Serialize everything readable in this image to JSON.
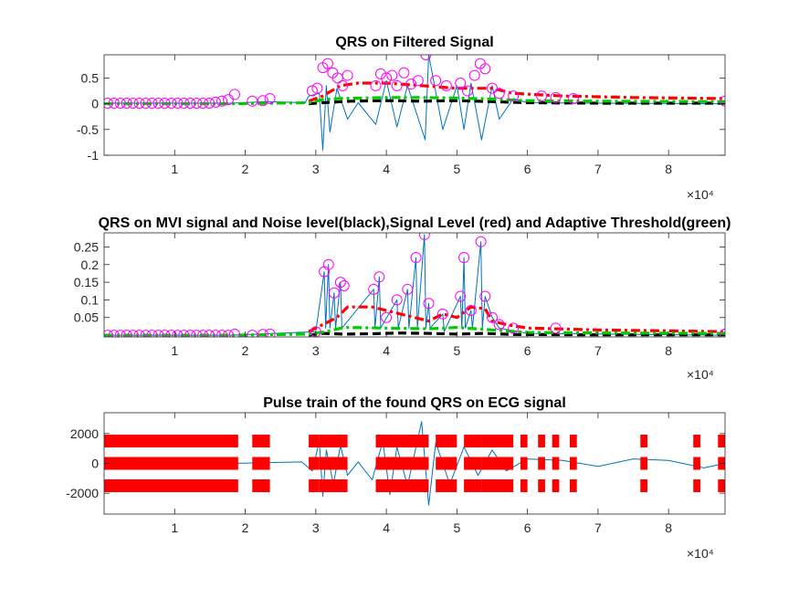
{
  "chart_data": [
    {
      "type": "line",
      "title": "QRS on Filtered Signal",
      "xlabel": "",
      "ylabel": "",
      "xlim": [
        0,
        88000
      ],
      "ylim": [
        -1,
        0.95
      ],
      "x_ticks": [
        10000,
        20000,
        30000,
        40000,
        50000,
        60000,
        70000,
        80000
      ],
      "x_tick_labels": [
        "1",
        "2",
        "3",
        "4",
        "5",
        "6",
        "7",
        "8"
      ],
      "x_exponent_label": "×10⁴",
      "y_ticks": [
        -1,
        -0.5,
        0,
        0.5
      ],
      "y_tick_labels": [
        "-1",
        "-0.5",
        "0",
        "0.5"
      ],
      "grid": false,
      "series": [
        {
          "role": "signal",
          "color": "#0072BD",
          "style": "solid",
          "x": [
            0,
            18000,
            23000,
            28500,
            29000,
            30500,
            31000,
            31500,
            32000,
            33000,
            34500,
            36000,
            38500,
            40000,
            41500,
            43000,
            45500,
            46000,
            48000,
            50000,
            51000,
            52000,
            53500,
            55000,
            56000,
            58000,
            60000,
            70000,
            88000
          ],
          "y": [
            0.01,
            0.01,
            0.04,
            0.02,
            0.15,
            0.2,
            -0.9,
            0.35,
            -0.55,
            0.3,
            -0.3,
            0.02,
            -0.4,
            0.45,
            -0.45,
            0.35,
            -0.7,
            0.95,
            -0.5,
            0.35,
            -0.5,
            0.4,
            -0.7,
            0.35,
            -0.3,
            0.1,
            0.02,
            0.01,
            0.0
          ]
        },
        {
          "role": "noise-level",
          "color": "#000000",
          "style": "dash",
          "x": [
            29000,
            31000,
            35000,
            40000,
            45000,
            50000,
            55000,
            60000,
            70000,
            88000
          ],
          "y": [
            0.0,
            0.02,
            0.05,
            0.06,
            0.05,
            0.06,
            0.04,
            0.02,
            0.01,
            0.01
          ]
        },
        {
          "role": "signal-level",
          "color": "#FF0000",
          "style": "dashdot",
          "x": [
            29000,
            31000,
            33500,
            36000,
            40000,
            45000,
            50000,
            55000,
            58000,
            65000,
            75000,
            88000
          ],
          "y": [
            0.05,
            0.15,
            0.35,
            0.4,
            0.4,
            0.35,
            0.3,
            0.3,
            0.2,
            0.15,
            0.12,
            0.1
          ]
        },
        {
          "role": "adaptive-threshold",
          "color": "#00CC00",
          "style": "dashdot",
          "x": [
            0,
            18000,
            29000,
            31000,
            33500,
            40000,
            45000,
            50000,
            55000,
            60000,
            70000,
            88000
          ],
          "y": [
            0.0,
            0.0,
            0.02,
            0.08,
            0.1,
            0.12,
            0.12,
            0.11,
            0.09,
            0.06,
            0.05,
            0.04
          ]
        }
      ],
      "markers": {
        "color": "#FF00FF",
        "shape": "circle",
        "x": [
          500,
          1400,
          2300,
          3200,
          4100,
          5000,
          5900,
          6800,
          7700,
          8600,
          9500,
          10400,
          11300,
          12200,
          13100,
          14000,
          14900,
          15800,
          16700,
          17600,
          18500,
          21000,
          22500,
          23500,
          29500,
          30200,
          31000,
          31700,
          32400,
          33100,
          33800,
          34500,
          38500,
          39200,
          40000,
          40800,
          41500,
          42500,
          43500,
          44500,
          45600,
          47000,
          48500,
          50500,
          51500,
          52500,
          53300,
          54000,
          55000,
          56000,
          58000,
          62000,
          64000,
          66500,
          88000
        ],
        "y": [
          0.01,
          0.01,
          0.01,
          0.01,
          0.01,
          0.01,
          0.01,
          0.01,
          0.01,
          0.01,
          0.01,
          0.01,
          0.01,
          0.01,
          0.01,
          0.01,
          0.01,
          0.03,
          0.05,
          0.08,
          0.18,
          0.05,
          0.06,
          0.1,
          0.25,
          0.3,
          0.7,
          0.78,
          0.6,
          0.5,
          0.35,
          0.55,
          0.35,
          0.58,
          0.5,
          0.55,
          0.35,
          0.6,
          0.38,
          0.45,
          0.95,
          0.45,
          0.35,
          0.4,
          0.25,
          0.55,
          0.78,
          0.68,
          0.3,
          0.2,
          0.15,
          0.15,
          0.12,
          0.1,
          0.05
        ]
      }
    },
    {
      "type": "line",
      "title": "QRS on MVI signal and Noise level(black),Signal Level (red) and Adaptive Threshold(green)",
      "xlabel": "",
      "ylabel": "",
      "xlim": [
        0,
        88000
      ],
      "ylim": [
        -0.005,
        0.29
      ],
      "x_ticks": [
        10000,
        20000,
        30000,
        40000,
        50000,
        60000,
        70000,
        80000
      ],
      "x_tick_labels": [
        "1",
        "2",
        "3",
        "4",
        "5",
        "6",
        "7",
        "8"
      ],
      "x_exponent_label": "×10⁴",
      "y_ticks": [
        0.05,
        0.1,
        0.15,
        0.2,
        0.25
      ],
      "y_tick_labels": [
        "0.05",
        "0.1",
        "0.15",
        "0.2",
        "0.25"
      ],
      "grid": false,
      "series": [
        {
          "role": "signal",
          "color": "#0072BD",
          "style": "stem-like",
          "x": [
            0,
            18000,
            30000,
            31200,
            31400,
            31800,
            32000,
            32600,
            32800,
            33500,
            33700,
            38200,
            38400,
            39000,
            39200,
            41500,
            41700,
            43000,
            43200,
            44200,
            44400,
            45400,
            45600,
            46000,
            46200,
            48000,
            48200,
            50500,
            50700,
            51000,
            51200,
            52000,
            52200,
            53400,
            53600,
            54000,
            55000,
            56000,
            60000,
            88000
          ],
          "y": [
            0.0,
            0.0,
            0.01,
            0.18,
            0.02,
            0.2,
            0.02,
            0.12,
            0.02,
            0.15,
            0.02,
            0.13,
            0.02,
            0.165,
            0.02,
            0.1,
            0.02,
            0.13,
            0.02,
            0.22,
            0.02,
            0.285,
            0.02,
            0.09,
            0.02,
            0.06,
            0.01,
            0.11,
            0.02,
            0.22,
            0.02,
            0.07,
            0.02,
            0.265,
            0.02,
            0.11,
            0.05,
            0.02,
            0.005,
            0.0
          ]
        },
        {
          "role": "noise-level",
          "color": "#000000",
          "style": "dash",
          "x": [
            29000,
            31000,
            34000,
            38000,
            42000,
            46000,
            50000,
            54000,
            58000,
            70000,
            88000
          ],
          "y": [
            0.0,
            0.005,
            0.003,
            0.004,
            0.006,
            0.005,
            0.003,
            0.005,
            0.002,
            0.001,
            0.001
          ]
        },
        {
          "role": "signal-level",
          "color": "#FF0000",
          "style": "dashdot",
          "x": [
            29000,
            31000,
            33000,
            34500,
            38000,
            40000,
            42000,
            44000,
            46000,
            48000,
            50000,
            52000,
            54000,
            55000,
            57000,
            60000,
            70000,
            88000
          ],
          "y": [
            0.01,
            0.03,
            0.05,
            0.08,
            0.08,
            0.07,
            0.06,
            0.05,
            0.04,
            0.06,
            0.05,
            0.08,
            0.075,
            0.04,
            0.03,
            0.02,
            0.015,
            0.01
          ]
        },
        {
          "role": "adaptive-threshold",
          "color": "#00CC00",
          "style": "dashdot",
          "x": [
            0,
            18000,
            29000,
            31500,
            34000,
            40000,
            46000,
            50000,
            55000,
            60000,
            70000,
            88000
          ],
          "y": [
            0.0,
            0.0,
            0.003,
            0.01,
            0.022,
            0.02,
            0.018,
            0.022,
            0.015,
            0.008,
            0.006,
            0.005
          ]
        }
      ],
      "markers": {
        "color": "#FF00FF",
        "shape": "circle",
        "x": [
          500,
          1400,
          2300,
          3200,
          4100,
          5000,
          5900,
          6800,
          7700,
          8600,
          9500,
          10400,
          11300,
          12200,
          13100,
          14000,
          14900,
          15800,
          16700,
          17600,
          18500,
          21000,
          22500,
          23500,
          30000,
          31200,
          31800,
          32600,
          33500,
          34000,
          38200,
          39000,
          40000,
          41500,
          43000,
          44200,
          45400,
          46000,
          48000,
          50500,
          51000,
          52000,
          53400,
          54000,
          55000,
          56000,
          58000,
          64000,
          88000
        ],
        "y": [
          0.0,
          0.0,
          0.0,
          0.0,
          0.0,
          0.0,
          0.0,
          0.0,
          0.0,
          0.0,
          0.0,
          0.0,
          0.0,
          0.0,
          0.0,
          0.0,
          0.0,
          0.0,
          0.0,
          0.0,
          0.003,
          0.0,
          0.002,
          0.003,
          0.01,
          0.18,
          0.2,
          0.12,
          0.15,
          0.14,
          0.13,
          0.165,
          0.05,
          0.1,
          0.13,
          0.22,
          0.285,
          0.09,
          0.06,
          0.11,
          0.22,
          0.07,
          0.265,
          0.11,
          0.05,
          0.03,
          0.02,
          0.02,
          0.003
        ]
      }
    },
    {
      "type": "line",
      "title": "Pulse train of the found QRS on ECG signal",
      "xlabel": "",
      "ylabel": "",
      "xlim": [
        0,
        88000
      ],
      "ylim": [
        -3400,
        3400
      ],
      "x_ticks": [
        10000,
        20000,
        30000,
        40000,
        50000,
        60000,
        70000,
        80000
      ],
      "x_tick_labels": [
        "1",
        "2",
        "3",
        "4",
        "5",
        "6",
        "7",
        "8"
      ],
      "x_exponent_label": "×10⁴",
      "y_ticks": [
        -2000,
        0,
        2000
      ],
      "y_tick_labels": [
        "-2000",
        "0",
        "2000"
      ],
      "grid": false,
      "series": [
        {
          "role": "ecg",
          "color": "#0072BD",
          "style": "solid",
          "x": [
            0,
            18000,
            28000,
            29500,
            30500,
            31000,
            31500,
            32500,
            33500,
            34500,
            36000,
            38000,
            39500,
            40500,
            41500,
            43000,
            45000,
            46000,
            47000,
            49000,
            51000,
            53000,
            55000,
            57000,
            60000,
            65000,
            70000,
            75000,
            80000,
            85000,
            88000
          ],
          "y": [
            0,
            0,
            100,
            -500,
            1500,
            -2200,
            900,
            -1400,
            1200,
            -800,
            100,
            -1100,
            1500,
            -2100,
            1100,
            -1500,
            2800,
            -2800,
            1400,
            -1400,
            1100,
            -800,
            900,
            -500,
            300,
            200,
            -200,
            300,
            200,
            -300,
            0
          ]
        },
        {
          "role": "qrs-pulse-train",
          "color": "#FF0000",
          "style": "thick-bars",
          "pulse_amplitude": 1500,
          "blocks": [
            [
              0,
              19000
            ],
            [
              21000,
              23500
            ],
            [
              29000,
              30500
            ],
            [
              30500,
              34500
            ],
            [
              38500,
              46000
            ],
            [
              47000,
              50000
            ],
            [
              51000,
              53500
            ],
            [
              53500,
              58000
            ],
            [
              59000,
              60000
            ],
            [
              61500,
              62500
            ],
            [
              63500,
              64500
            ],
            [
              66000,
              67000
            ],
            [
              76000,
              77000
            ],
            [
              83500,
              84500
            ],
            [
              87000,
              88000
            ]
          ]
        }
      ]
    }
  ]
}
